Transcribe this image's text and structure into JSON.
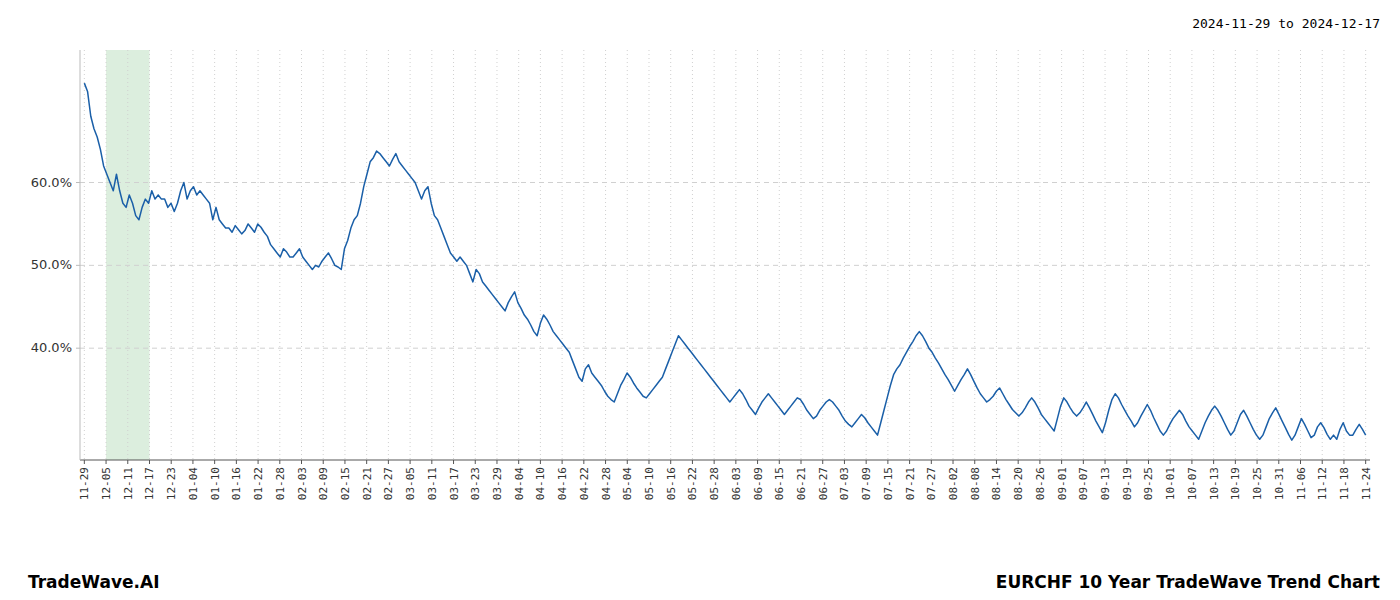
{
  "chart_data": {
    "type": "line",
    "title": "EURCHF 10 Year TradeWave Trend Chart",
    "subtitle": "2024-11-29 to 2024-12-17",
    "annotations": [
      "TradeWave.AI"
    ],
    "color": "#1a5fa8",
    "grid": true,
    "highlight": {
      "xmin": 1,
      "xmax": 3,
      "color": "#dceede"
    },
    "xlim": [
      -0.2,
      59.2
    ],
    "xticks": [
      {
        "value": 0,
        "label": "11-29"
      },
      {
        "value": 1,
        "label": "12-05"
      },
      {
        "value": 2,
        "label": "12-11"
      },
      {
        "value": 3,
        "label": "12-17"
      },
      {
        "value": 4,
        "label": "12-23"
      },
      {
        "value": 5,
        "label": "01-04"
      },
      {
        "value": 6,
        "label": "01-10"
      },
      {
        "value": 7,
        "label": "01-16"
      },
      {
        "value": 8,
        "label": "01-22"
      },
      {
        "value": 9,
        "label": "01-28"
      },
      {
        "value": 10,
        "label": "02-03"
      },
      {
        "value": 11,
        "label": "02-09"
      },
      {
        "value": 12,
        "label": "02-15"
      },
      {
        "value": 13,
        "label": "02-21"
      },
      {
        "value": 14,
        "label": "02-27"
      },
      {
        "value": 15,
        "label": "03-05"
      },
      {
        "value": 16,
        "label": "03-11"
      },
      {
        "value": 17,
        "label": "03-17"
      },
      {
        "value": 18,
        "label": "03-23"
      },
      {
        "value": 19,
        "label": "03-29"
      },
      {
        "value": 20,
        "label": "04-04"
      },
      {
        "value": 21,
        "label": "04-10"
      },
      {
        "value": 22,
        "label": "04-16"
      },
      {
        "value": 23,
        "label": "04-22"
      },
      {
        "value": 24,
        "label": "04-28"
      },
      {
        "value": 25,
        "label": "05-04"
      },
      {
        "value": 26,
        "label": "05-10"
      },
      {
        "value": 27,
        "label": "05-16"
      },
      {
        "value": 28,
        "label": "05-22"
      },
      {
        "value": 29,
        "label": "05-28"
      },
      {
        "value": 30,
        "label": "06-03"
      },
      {
        "value": 31,
        "label": "06-09"
      },
      {
        "value": 32,
        "label": "06-15"
      },
      {
        "value": 33,
        "label": "06-21"
      },
      {
        "value": 34,
        "label": "06-27"
      },
      {
        "value": 35,
        "label": "07-03"
      },
      {
        "value": 36,
        "label": "07-09"
      },
      {
        "value": 37,
        "label": "07-15"
      },
      {
        "value": 38,
        "label": "07-21"
      },
      {
        "value": 39,
        "label": "07-27"
      },
      {
        "value": 40,
        "label": "08-02"
      },
      {
        "value": 41,
        "label": "08-08"
      },
      {
        "value": 42,
        "label": "08-14"
      },
      {
        "value": 43,
        "label": "08-20"
      },
      {
        "value": 44,
        "label": "08-26"
      },
      {
        "value": 45,
        "label": "09-01"
      },
      {
        "value": 46,
        "label": "09-07"
      },
      {
        "value": 47,
        "label": "09-13"
      },
      {
        "value": 48,
        "label": "09-19"
      },
      {
        "value": 49,
        "label": "09-25"
      },
      {
        "value": 50,
        "label": "10-01"
      },
      {
        "value": 51,
        "label": "10-07"
      },
      {
        "value": 52,
        "label": "10-13"
      },
      {
        "value": 53,
        "label": "10-19"
      },
      {
        "value": 54,
        "label": "10-25"
      },
      {
        "value": 55,
        "label": "10-31"
      },
      {
        "value": 56,
        "label": "11-06"
      },
      {
        "value": 57,
        "label": "11-12"
      },
      {
        "value": 58,
        "label": "11-18"
      },
      {
        "value": 59,
        "label": "11-24"
      }
    ],
    "ylim": [
      0.265,
      0.76
    ],
    "yticks": [
      {
        "value": 0.4,
        "label": "40.0%"
      },
      {
        "value": 0.5,
        "label": "50.0%"
      },
      {
        "value": 0.6,
        "label": "60.0%"
      }
    ],
    "values": [
      0.72,
      0.71,
      0.68,
      0.665,
      0.655,
      0.64,
      0.62,
      0.61,
      0.6,
      0.59,
      0.61,
      0.59,
      0.575,
      0.57,
      0.585,
      0.575,
      0.56,
      0.555,
      0.57,
      0.58,
      0.575,
      0.59,
      0.58,
      0.585,
      0.58,
      0.58,
      0.57,
      0.575,
      0.565,
      0.575,
      0.59,
      0.6,
      0.58,
      0.59,
      0.595,
      0.585,
      0.59,
      0.585,
      0.58,
      0.575,
      0.555,
      0.57,
      0.555,
      0.55,
      0.545,
      0.545,
      0.54,
      0.548,
      0.543,
      0.538,
      0.542,
      0.55,
      0.545,
      0.54,
      0.55,
      0.546,
      0.54,
      0.535,
      0.525,
      0.52,
      0.515,
      0.51,
      0.52,
      0.516,
      0.51,
      0.51,
      0.515,
      0.52,
      0.51,
      0.505,
      0.5,
      0.495,
      0.5,
      0.498,
      0.505,
      0.51,
      0.515,
      0.508,
      0.5,
      0.498,
      0.495,
      0.52,
      0.53,
      0.545,
      0.555,
      0.56,
      0.575,
      0.595,
      0.61,
      0.625,
      0.63,
      0.638,
      0.635,
      0.63,
      0.625,
      0.62,
      0.628,
      0.635,
      0.625,
      0.62,
      0.615,
      0.61,
      0.605,
      0.6,
      0.59,
      0.58,
      0.59,
      0.595,
      0.575,
      0.56,
      0.555,
      0.545,
      0.535,
      0.525,
      0.515,
      0.51,
      0.505,
      0.51,
      0.505,
      0.5,
      0.49,
      0.48,
      0.495,
      0.49,
      0.48,
      0.475,
      0.47,
      0.465,
      0.46,
      0.455,
      0.45,
      0.445,
      0.455,
      0.462,
      0.468,
      0.455,
      0.448,
      0.44,
      0.435,
      0.428,
      0.42,
      0.415,
      0.43,
      0.44,
      0.435,
      0.428,
      0.42,
      0.415,
      0.41,
      0.405,
      0.4,
      0.395,
      0.385,
      0.375,
      0.365,
      0.36,
      0.375,
      0.38,
      0.37,
      0.365,
      0.36,
      0.355,
      0.348,
      0.342,
      0.338,
      0.335,
      0.345,
      0.355,
      0.362,
      0.37,
      0.365,
      0.358,
      0.352,
      0.347,
      0.342,
      0.34,
      0.345,
      0.35,
      0.355,
      0.36,
      0.365,
      0.375,
      0.385,
      0.395,
      0.405,
      0.415,
      0.41,
      0.405,
      0.4,
      0.395,
      0.39,
      0.385,
      0.38,
      0.375,
      0.37,
      0.365,
      0.36,
      0.355,
      0.35,
      0.345,
      0.34,
      0.335,
      0.34,
      0.345,
      0.35,
      0.345,
      0.338,
      0.33,
      0.325,
      0.32,
      0.328,
      0.335,
      0.34,
      0.345,
      0.34,
      0.335,
      0.33,
      0.325,
      0.32,
      0.325,
      0.33,
      0.335,
      0.34,
      0.338,
      0.332,
      0.325,
      0.32,
      0.315,
      0.318,
      0.325,
      0.33,
      0.335,
      0.338,
      0.335,
      0.33,
      0.325,
      0.318,
      0.312,
      0.308,
      0.305,
      0.31,
      0.315,
      0.32,
      0.316,
      0.31,
      0.305,
      0.3,
      0.295,
      0.31,
      0.325,
      0.34,
      0.355,
      0.368,
      0.375,
      0.38,
      0.388,
      0.395,
      0.402,
      0.408,
      0.415,
      0.42,
      0.415,
      0.408,
      0.4,
      0.395,
      0.388,
      0.382,
      0.375,
      0.368,
      0.362,
      0.355,
      0.348,
      0.355,
      0.362,
      0.368,
      0.375,
      0.368,
      0.36,
      0.352,
      0.345,
      0.34,
      0.335,
      0.338,
      0.342,
      0.348,
      0.352,
      0.345,
      0.338,
      0.332,
      0.326,
      0.322,
      0.318,
      0.322,
      0.328,
      0.335,
      0.34,
      0.335,
      0.328,
      0.32,
      0.315,
      0.31,
      0.305,
      0.3,
      0.315,
      0.33,
      0.34,
      0.335,
      0.328,
      0.322,
      0.318,
      0.322,
      0.328,
      0.335,
      0.328,
      0.32,
      0.312,
      0.305,
      0.298,
      0.31,
      0.325,
      0.338,
      0.345,
      0.34,
      0.332,
      0.325,
      0.318,
      0.312,
      0.305,
      0.31,
      0.318,
      0.325,
      0.332,
      0.325,
      0.316,
      0.308,
      0.3,
      0.295,
      0.3,
      0.308,
      0.315,
      0.32,
      0.325,
      0.32,
      0.312,
      0.305,
      0.3,
      0.295,
      0.29,
      0.3,
      0.31,
      0.318,
      0.325,
      0.33,
      0.325,
      0.318,
      0.31,
      0.302,
      0.295,
      0.3,
      0.31,
      0.32,
      0.325,
      0.318,
      0.31,
      0.302,
      0.295,
      0.29,
      0.295,
      0.305,
      0.315,
      0.322,
      0.328,
      0.32,
      0.312,
      0.304,
      0.296,
      0.289,
      0.295,
      0.305,
      0.315,
      0.308,
      0.3,
      0.292,
      0.295,
      0.305,
      0.31,
      0.304,
      0.296,
      0.29,
      0.295,
      0.29,
      0.302,
      0.31,
      0.3,
      0.295,
      0.295,
      0.302,
      0.308,
      0.302,
      0.295
    ]
  }
}
